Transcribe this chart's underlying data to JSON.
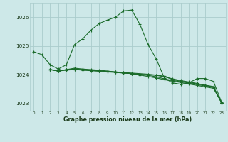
{
  "bg_color": "#cde8e8",
  "grid_color": "#aacccc",
  "line_color": "#1a6b2a",
  "xlabel": "Graphe pression niveau de la mer (hPa)",
  "xlim": [
    -0.5,
    23.5
  ],
  "ylim": [
    1022.75,
    1026.5
  ],
  "yticks": [
    1023,
    1024,
    1025,
    1026
  ],
  "xticks": [
    0,
    1,
    2,
    3,
    4,
    5,
    6,
    7,
    8,
    9,
    10,
    11,
    12,
    13,
    14,
    15,
    16,
    17,
    18,
    19,
    20,
    21,
    22,
    23
  ],
  "series": [
    [
      1024.8,
      1024.7,
      1024.35,
      1024.2,
      1024.35,
      1025.05,
      1025.25,
      1025.55,
      1025.78,
      1025.9,
      1026.0,
      1026.22,
      1026.25,
      1025.75,
      1025.05,
      1024.55,
      1023.88,
      1023.72,
      1023.67,
      1023.72,
      1023.87,
      1023.87,
      1023.77,
      1023.05
    ],
    [
      null,
      null,
      1024.18,
      1024.13,
      1024.18,
      1024.2,
      1024.18,
      1024.16,
      1024.14,
      1024.11,
      1024.09,
      1024.06,
      1024.04,
      1023.99,
      1023.94,
      1023.89,
      1023.83,
      1023.78,
      1023.73,
      1023.68,
      1023.63,
      1023.58,
      1023.53,
      1023.03
    ],
    [
      null,
      null,
      1024.18,
      1024.13,
      1024.18,
      1024.23,
      1024.2,
      1024.18,
      1024.16,
      1024.13,
      1024.1,
      1024.07,
      1024.04,
      1024.01,
      1023.98,
      1023.93,
      1023.86,
      1023.8,
      1023.76,
      1023.71,
      1023.66,
      1023.61,
      1023.56,
      1023.03
    ],
    [
      null,
      null,
      1024.18,
      1024.13,
      1024.16,
      1024.18,
      1024.16,
      1024.14,
      1024.12,
      1024.1,
      1024.08,
      1024.06,
      1024.04,
      1024.02,
      1024.0,
      1023.98,
      1023.93,
      1023.86,
      1023.8,
      1023.75,
      1023.7,
      1023.63,
      1023.58,
      1023.03
    ],
    [
      null,
      null,
      1024.18,
      1024.15,
      1024.17,
      1024.19,
      1024.17,
      1024.15,
      1024.14,
      1024.12,
      1024.1,
      1024.08,
      1024.06,
      1024.04,
      1024.02,
      1023.99,
      1023.95,
      1023.83,
      1023.78,
      1023.73,
      1023.68,
      1023.64,
      1023.59,
      1023.03
    ]
  ]
}
